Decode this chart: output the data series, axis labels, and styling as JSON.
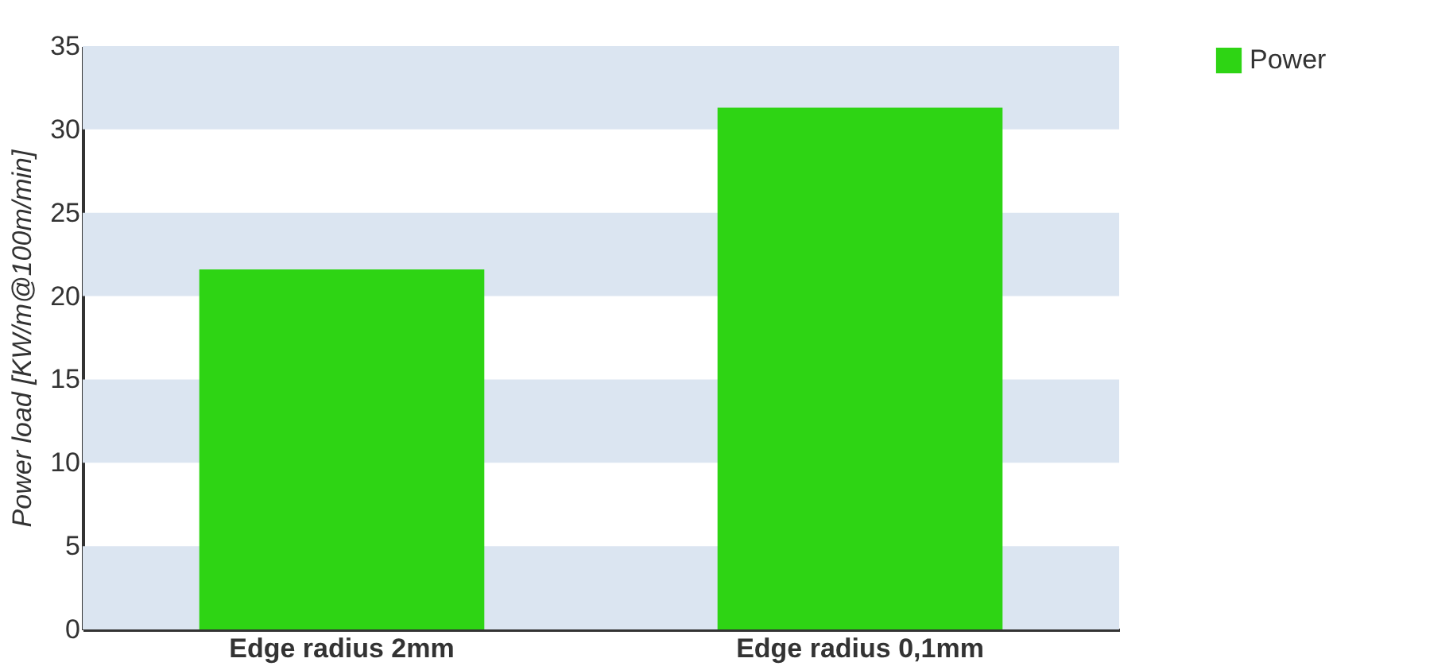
{
  "chart_data": {
    "type": "bar",
    "ylabel": "Power load [KW/m@100m/min]",
    "categories": [
      "Edge radius 2mm",
      "Edge radius 0,1mm"
    ],
    "series": [
      {
        "name": "Power",
        "color": "#2ed414",
        "values": [
          21.6,
          31.3
        ]
      }
    ],
    "ylim": [
      0,
      35
    ],
    "yticks": [
      0,
      5,
      10,
      15,
      20,
      25,
      30,
      35
    ],
    "grid": false,
    "legend": "right",
    "bands": [
      {
        "axis": "y",
        "from": 0,
        "to": 5,
        "color": "#dbe5f1"
      },
      {
        "axis": "y",
        "from": 10,
        "to": 15,
        "color": "#dbe5f1"
      },
      {
        "axis": "y",
        "from": 20,
        "to": 25,
        "color": "#dbe5f1"
      },
      {
        "axis": "y",
        "from": 30,
        "to": 35,
        "color": "#dbe5f1"
      }
    ]
  }
}
